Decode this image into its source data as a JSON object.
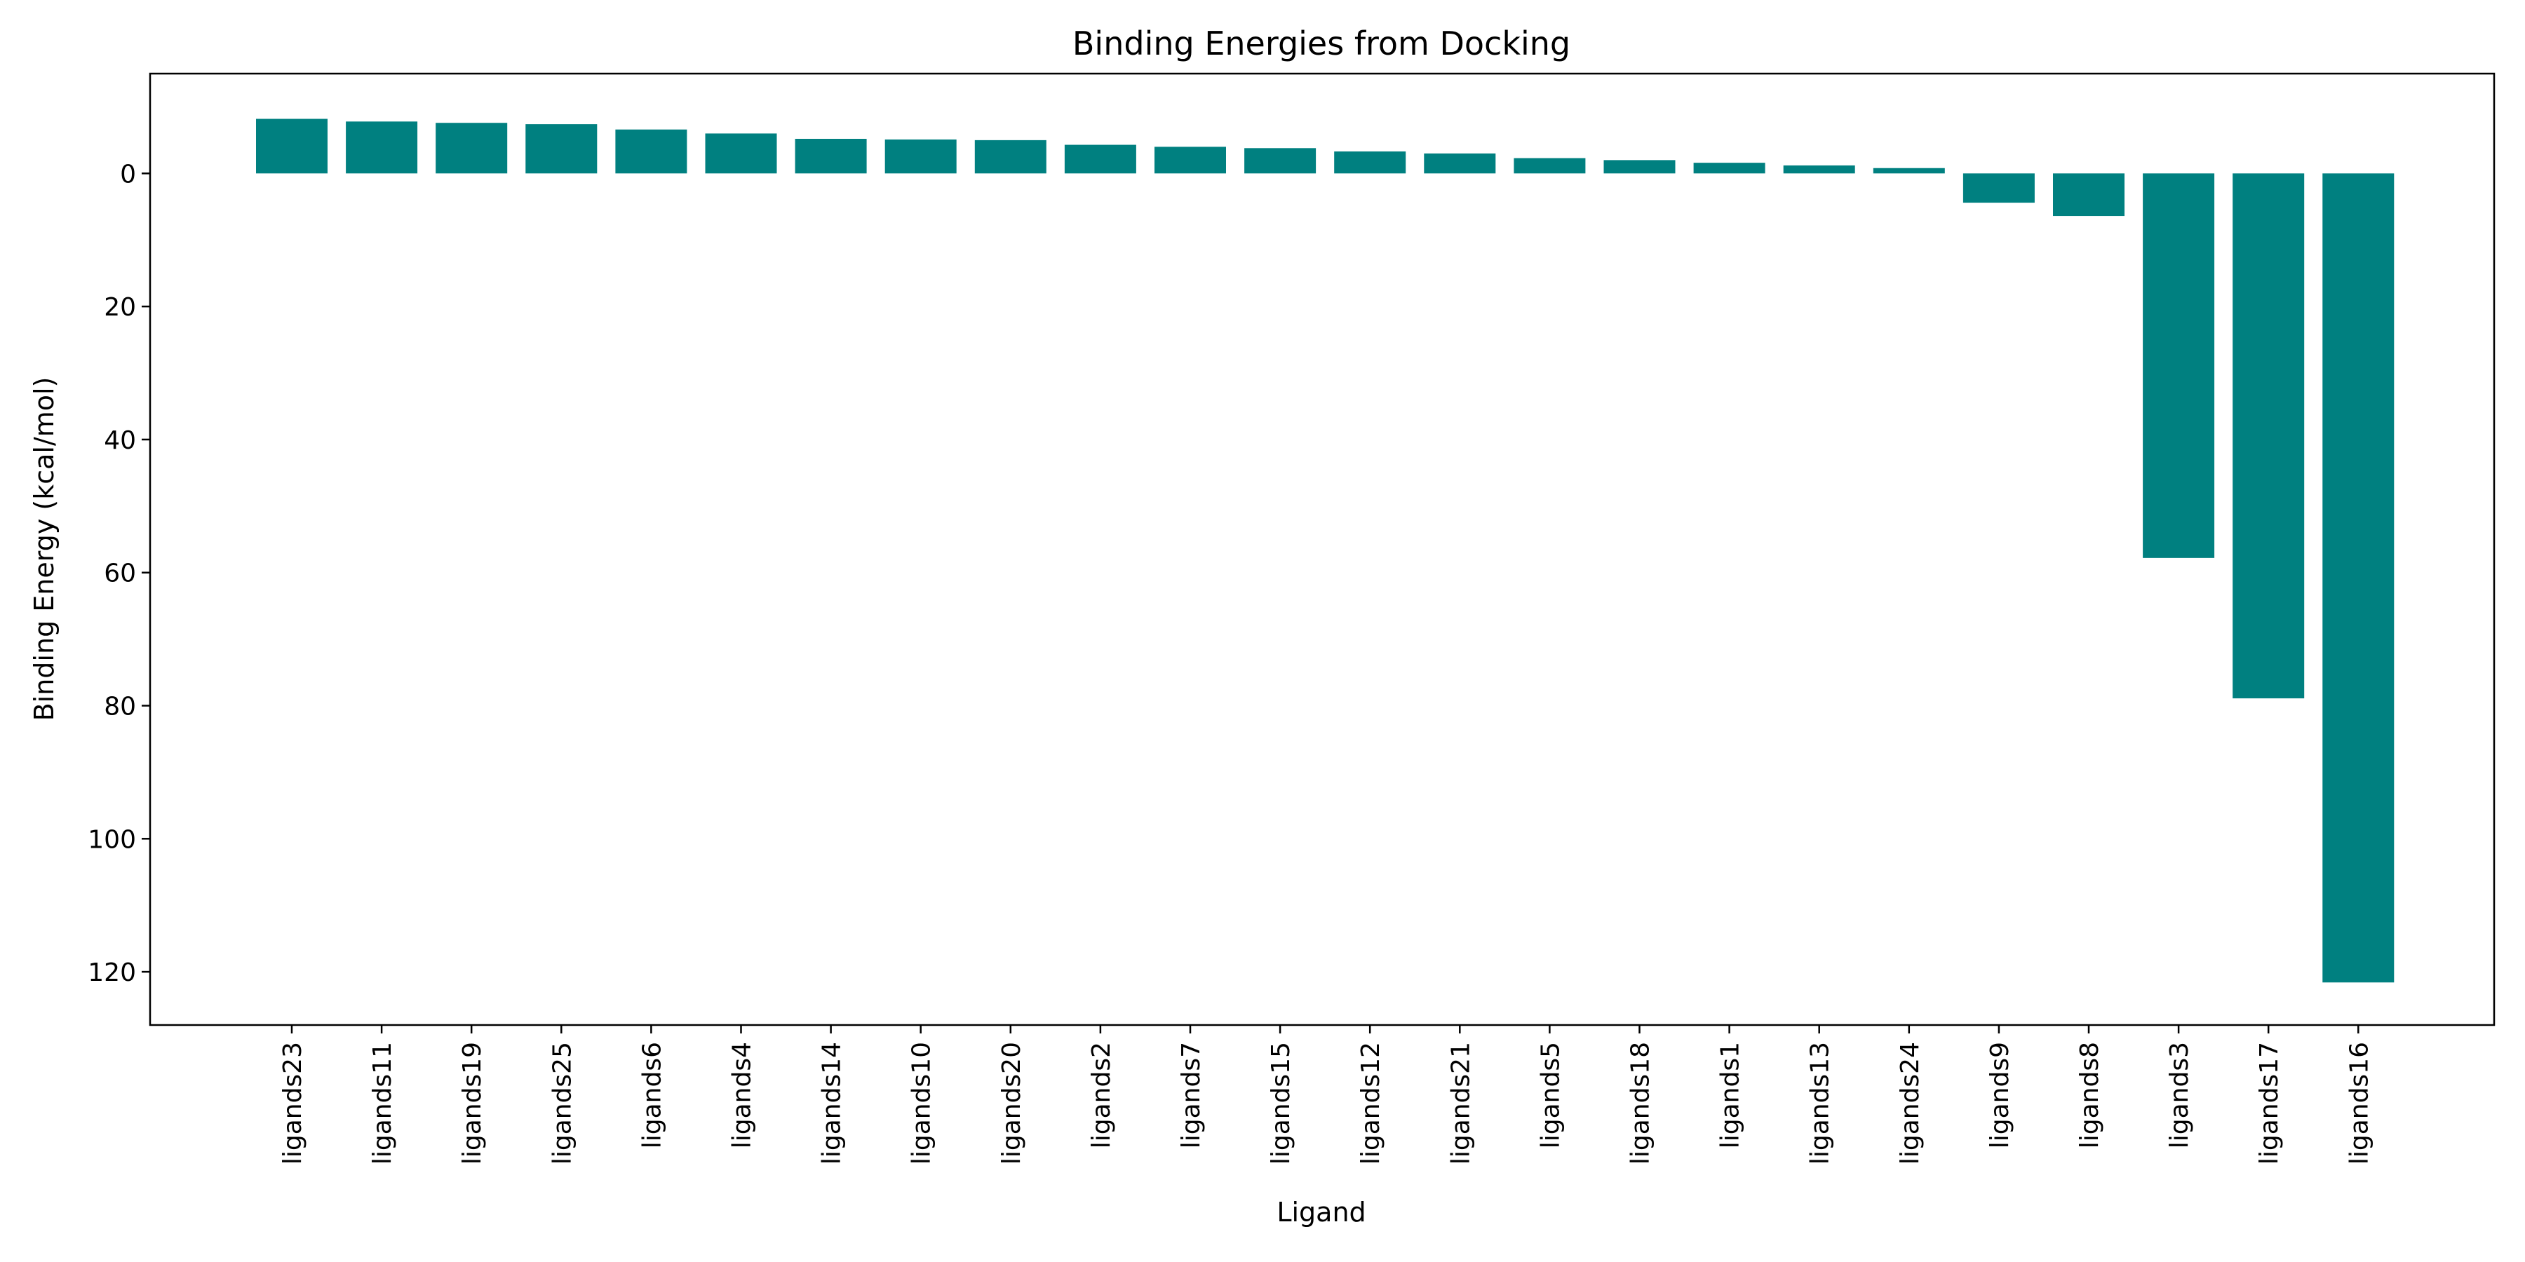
{
  "chart_data": {
    "type": "bar",
    "title": "Binding Energies from Docking",
    "xlabel": "Ligand",
    "ylabel": "Binding Energy (kcal/mol)",
    "y_inverted": true,
    "ylim": [
      -15,
      128
    ],
    "yticks": [
      0,
      20,
      40,
      60,
      80,
      100,
      120
    ],
    "bar_color": "#008080",
    "grid": false,
    "categories": [
      "ligands23",
      "ligands11",
      "ligands19",
      "ligands25",
      "ligands6",
      "ligands4",
      "ligands14",
      "ligands10",
      "ligands20",
      "ligands2",
      "ligands7",
      "ligands15",
      "ligands12",
      "ligands21",
      "ligands5",
      "ligands18",
      "ligands1",
      "ligands13",
      "ligands24",
      "ligands9",
      "ligands8",
      "ligands3",
      "ligands17",
      "ligands16"
    ],
    "values": [
      -8.2,
      -7.8,
      -7.6,
      -7.4,
      -6.6,
      -6.0,
      -5.2,
      -5.1,
      -5.0,
      -4.3,
      -4.0,
      -3.8,
      -3.3,
      -3.0,
      -2.3,
      -2.0,
      -1.6,
      -1.2,
      -0.8,
      4.4,
      6.4,
      57.8,
      78.9,
      121.6
    ]
  }
}
